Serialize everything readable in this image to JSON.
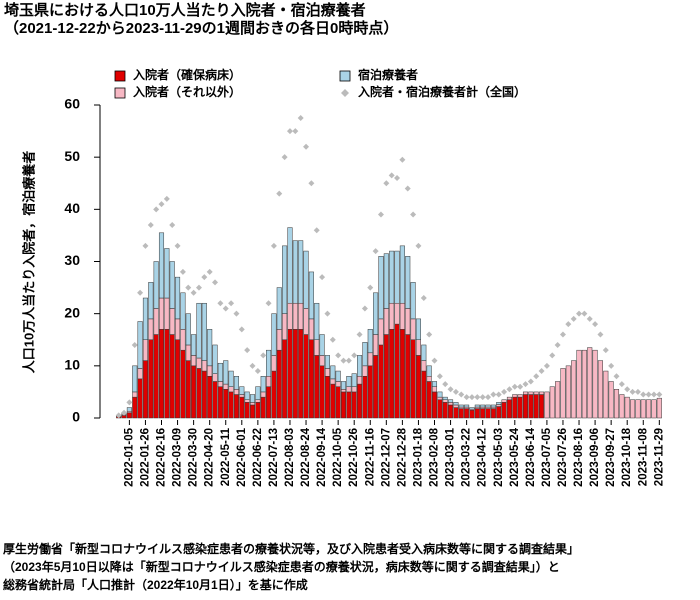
{
  "chart_data": {
    "type": "bar",
    "title": "埼玉県における人口10万人当たり入院者・宿泊療養者",
    "subtitle": "（2021-12-22から2023-11-29の1週間おきの各日0時時点）",
    "y_label": "人口10万人当たり入院者，宿泊療養者",
    "notes": [
      "厚生労働省「新型コロナウイルス感染症患者の療養状況等，及び入院患者受入病床数等に関する調査結果」",
      "（2023年5月10日以降は「新型コロナウイルス感染症患者の療養状況，病床数等に関する調査結果」）と",
      "総務省統計局「人口推計（2022年10月1日）」を基に作成"
    ],
    "ylim": [
      0,
      60
    ],
    "yticks": [
      0,
      10,
      20,
      30,
      40,
      50,
      60
    ],
    "categories": [
      null,
      null,
      "2022-01-05",
      null,
      null,
      "2022-01-26",
      null,
      null,
      "2022-02-16",
      null,
      null,
      "2022-03-09",
      null,
      null,
      "2022-03-30",
      null,
      null,
      "2022-04-20",
      null,
      null,
      "2022-05-11",
      null,
      null,
      "2022-06-01",
      null,
      null,
      "2022-06-22",
      null,
      null,
      "2022-07-13",
      null,
      null,
      "2022-08-03",
      null,
      null,
      "2022-08-24",
      null,
      null,
      "2022-09-14",
      null,
      null,
      "2022-10-05",
      null,
      null,
      "2022-10-26",
      null,
      null,
      "2022-11-16",
      null,
      null,
      "2022-12-07",
      null,
      null,
      "2022-12-28",
      null,
      null,
      "2023-01-18",
      null,
      null,
      "2023-02-08",
      null,
      null,
      "2023-03-01",
      null,
      null,
      "2023-03-22",
      null,
      null,
      "2023-04-12",
      null,
      null,
      "2023-05-03",
      null,
      null,
      "2023-05-24",
      null,
      null,
      "2023-06-14",
      null,
      null,
      "2023-07-05",
      null,
      null,
      "2023-07-26",
      null,
      null,
      "2023-08-16",
      null,
      null,
      "2023-09-06",
      null,
      null,
      "2023-09-27",
      null,
      null,
      "2023-10-18",
      null,
      null,
      "2023-11-08",
      null,
      null,
      "2023-11-29"
    ],
    "series": [
      {
        "name": "入院者（確保病床）",
        "color": "#e00000",
        "values": [
          0.3,
          0.5,
          1,
          4,
          7.5,
          11,
          15,
          16,
          17,
          17,
          16,
          15,
          13,
          11,
          10,
          9.5,
          9,
          8,
          7,
          6,
          5.5,
          5,
          4.5,
          4,
          3,
          2.5,
          3,
          4,
          6,
          9,
          13,
          15,
          17,
          17,
          17,
          16,
          15,
          12,
          10,
          8,
          6.5,
          6,
          5,
          5,
          5,
          6.5,
          8,
          10,
          12,
          14,
          16,
          17,
          18,
          17,
          16,
          15,
          12,
          9,
          7,
          5,
          3.5,
          3,
          2.5,
          2,
          1.8,
          1.8,
          1.5,
          1.8,
          1.8,
          1.8,
          1.8,
          2.2,
          3,
          3.5,
          4,
          4,
          4.5,
          4.5,
          4.5,
          4.5,
          0,
          0,
          0,
          0,
          0,
          0,
          0,
          0,
          0,
          0,
          0,
          0,
          0,
          0,
          0,
          0,
          0,
          0,
          0,
          0,
          0,
          0
        ]
      },
      {
        "name": "入院者（それ以外）",
        "color": "#f7b8c4",
        "values": [
          0.1,
          0.2,
          0.3,
          1,
          2,
          4,
          4,
          5,
          6,
          6,
          5,
          4,
          4,
          3,
          2,
          2,
          2,
          2,
          1.5,
          1,
          1,
          1,
          1,
          0.5,
          0.5,
          0.5,
          0.5,
          1,
          2,
          3,
          4,
          5,
          5,
          5,
          5,
          5,
          4,
          3,
          2,
          1.5,
          1,
          1,
          0.5,
          1,
          1,
          1.5,
          2,
          2.5,
          4,
          5,
          5,
          5,
          4,
          5,
          5,
          4,
          3,
          2,
          1,
          1,
          0.5,
          0.5,
          0.5,
          0.5,
          0.3,
          0.3,
          0.2,
          0.3,
          0.3,
          0.3,
          0.3,
          0.4,
          0.5,
          0.5,
          0.5,
          0.5,
          0.5,
          0.5,
          0.5,
          0.5,
          5,
          6,
          7,
          9.5,
          10,
          11,
          13,
          13,
          13.5,
          13,
          11,
          9,
          7,
          5.5,
          4.5,
          4,
          3.5,
          3.5,
          3.5,
          3.5,
          3.5,
          3.8
        ]
      },
      {
        "name": "宿泊療養者",
        "color": "#a9d3e6",
        "values": [
          0.1,
          0.3,
          0.7,
          5,
          9,
          8,
          7,
          9,
          12.5,
          9.5,
          9,
          8,
          7,
          6,
          4,
          10.5,
          11,
          7,
          5.5,
          3.5,
          4.5,
          3,
          2.5,
          1.5,
          1.5,
          1.5,
          2.5,
          3,
          5,
          8,
          8,
          13,
          14.5,
          12,
          12,
          11,
          9,
          7,
          4,
          2.5,
          2.5,
          2,
          1.5,
          2,
          2.5,
          4,
          4.5,
          4.5,
          8,
          12,
          10.5,
          10,
          10,
          11,
          10,
          7,
          4,
          3,
          2,
          1,
          1,
          0.5,
          0.5,
          0.5,
          0.4,
          0.4,
          0.3,
          0.4,
          0.4,
          0.4,
          0.4,
          0.4,
          0,
          0,
          0,
          0,
          0,
          0,
          0,
          0,
          0,
          0,
          0,
          0,
          0,
          0,
          0,
          0,
          0,
          0,
          0,
          0,
          0,
          0,
          0,
          0,
          0,
          0,
          0,
          0,
          0,
          0
        ]
      },
      {
        "name": "入院者・宿泊療養者計（全国）",
        "type": "scatter",
        "color": "#bbbbbb",
        "values": [
          0.5,
          1,
          3,
          14,
          24,
          33,
          37,
          40,
          41,
          42,
          37,
          33,
          28,
          25,
          24,
          25,
          27,
          28,
          26,
          22,
          21,
          22,
          20,
          17,
          13,
          10,
          9,
          12,
          22,
          33,
          43,
          50,
          55,
          55,
          57.5,
          52,
          45,
          36,
          27,
          20,
          15,
          12,
          11,
          11,
          12,
          16,
          21,
          25,
          32,
          39,
          45,
          46.5,
          46,
          49.5,
          44,
          39,
          33,
          23,
          16,
          11,
          8,
          6.5,
          5.5,
          5,
          4.5,
          4,
          4,
          4,
          4,
          4,
          4.5,
          4.5,
          5,
          5.5,
          6,
          6,
          6.5,
          7,
          8,
          9,
          10,
          12,
          14,
          16,
          18,
          19,
          20,
          20,
          19,
          18,
          16,
          13,
          10,
          8,
          6.5,
          5.5,
          5,
          5,
          4.5,
          4.5,
          4.5,
          4.5
        ]
      }
    ]
  }
}
